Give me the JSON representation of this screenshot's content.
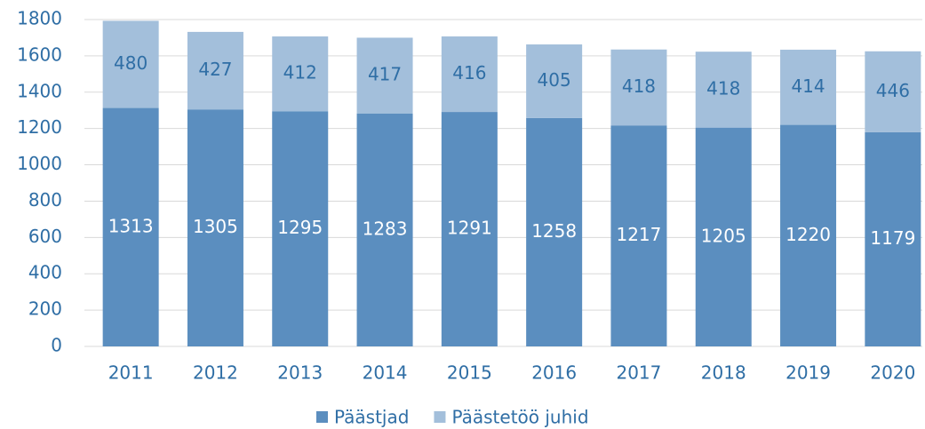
{
  "chart_data": {
    "type": "stacked_bar",
    "categories": [
      "2011",
      "2012",
      "2013",
      "2014",
      "2015",
      "2016",
      "2017",
      "2018",
      "2019",
      "2020"
    ],
    "series": [
      {
        "name": "Päästjad",
        "color": "#5b8ebf",
        "values": [
          1313,
          1305,
          1295,
          1283,
          1291,
          1258,
          1217,
          1205,
          1220,
          1179
        ]
      },
      {
        "name": "Päästetöö juhid",
        "color": "#a3bfdb",
        "values": [
          480,
          427,
          412,
          417,
          416,
          405,
          418,
          418,
          414,
          446
        ]
      }
    ],
    "ylim": [
      0,
      1800
    ],
    "yticks": [
      0,
      200,
      400,
      600,
      800,
      1000,
      1200,
      1400,
      1600,
      1800
    ],
    "grid": true,
    "legend": "bottom"
  }
}
